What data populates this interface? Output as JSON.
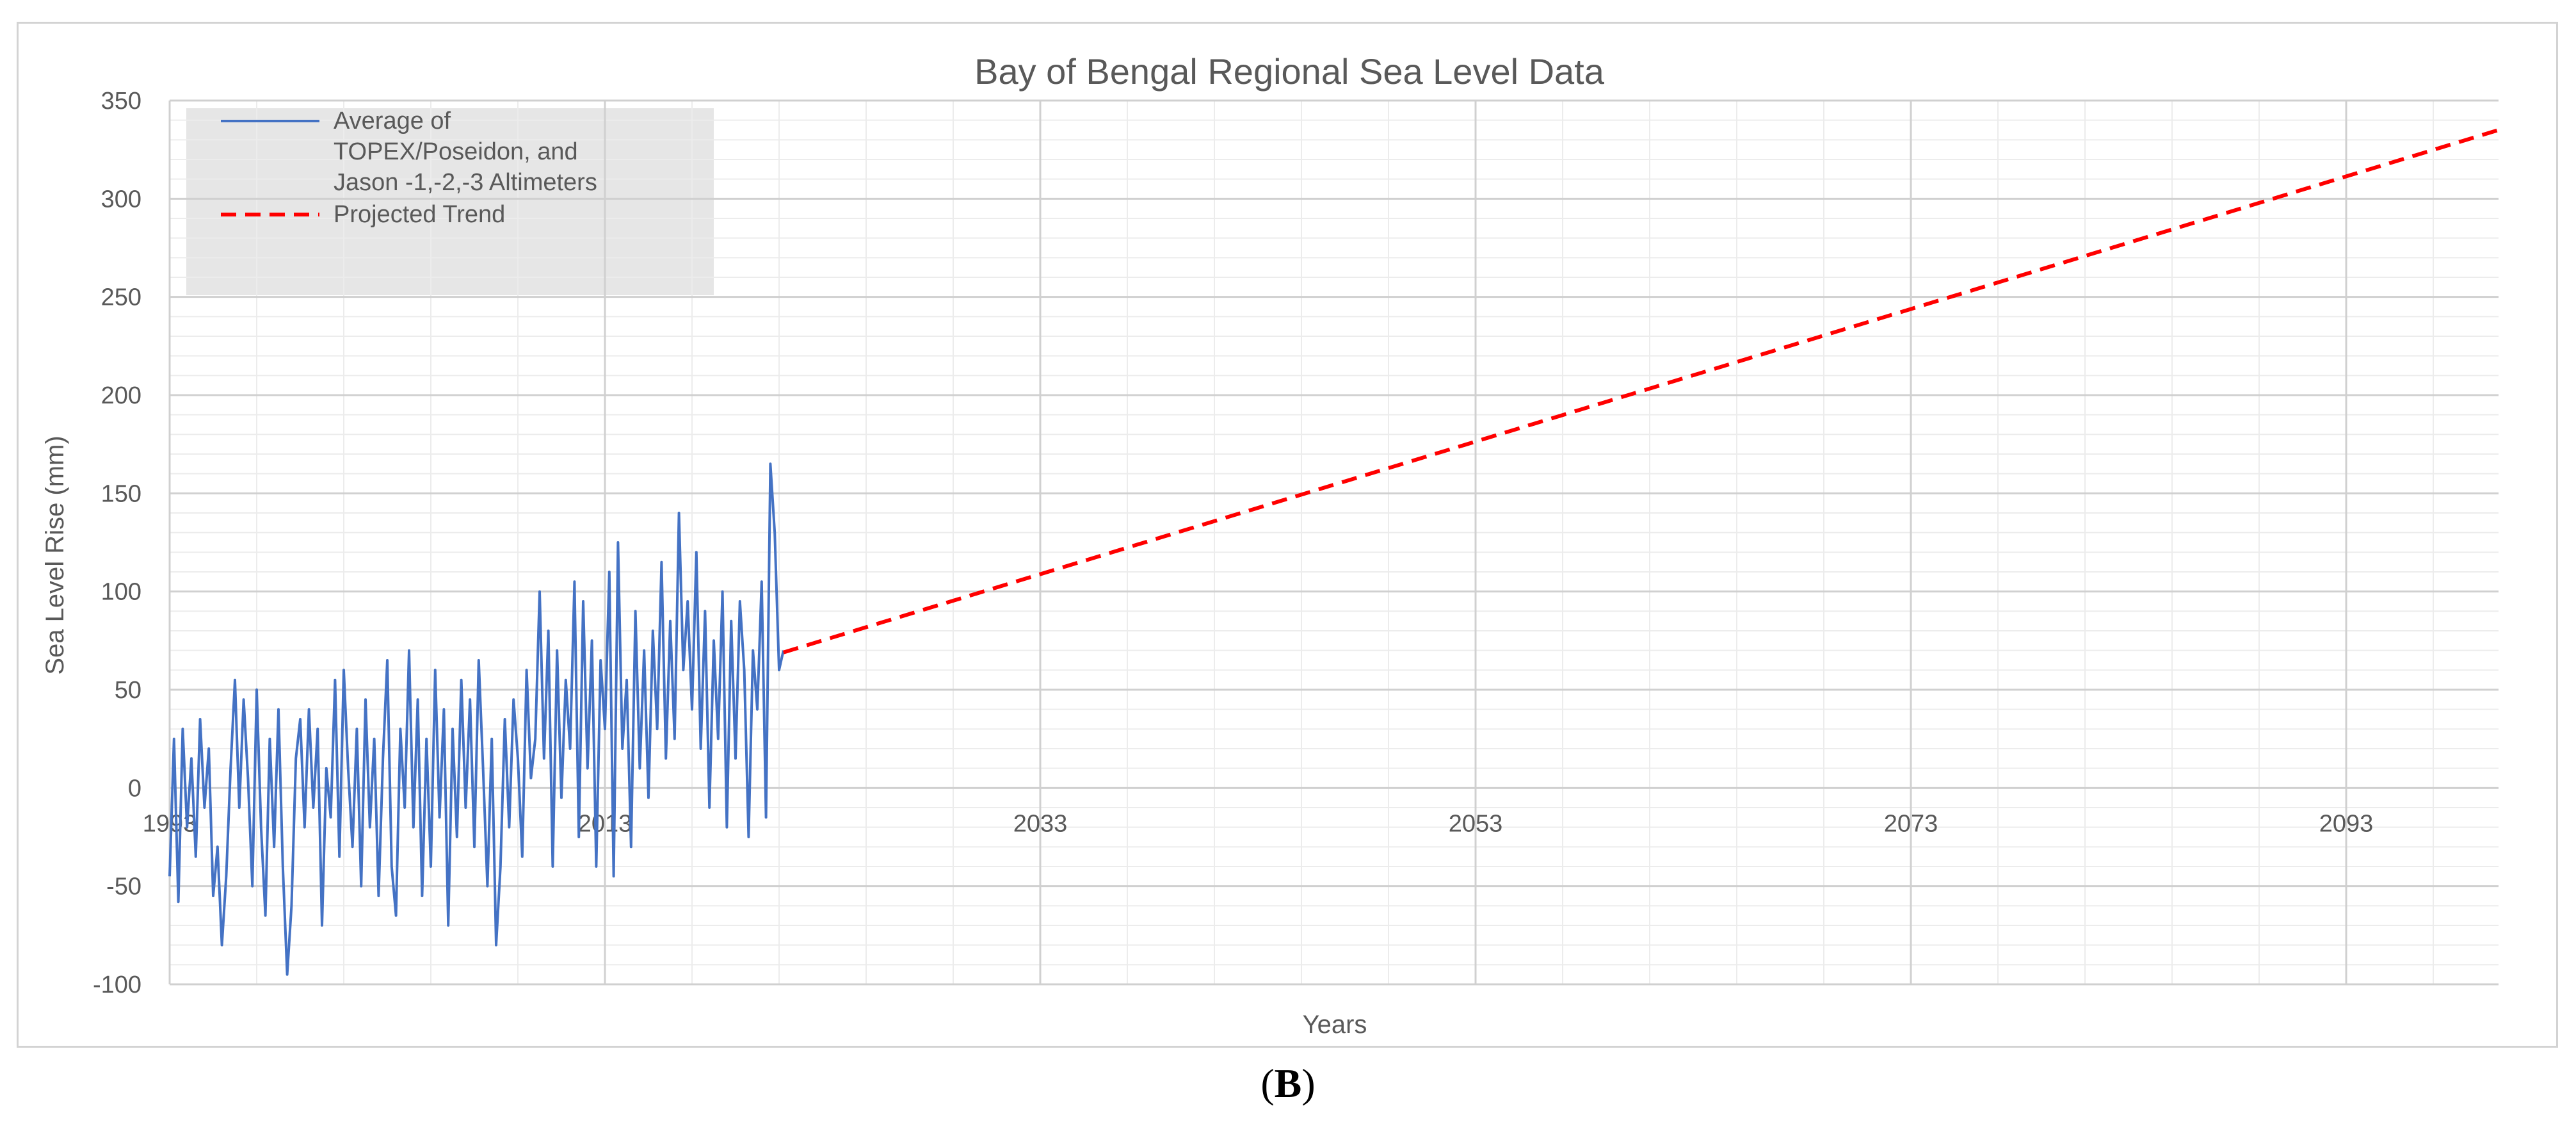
{
  "chart_data": {
    "type": "line",
    "title": "Bay of Bengal Regional Sea Level Data",
    "xlabel": "Years",
    "ylabel": "Sea Level Rise (mm)",
    "xlim": [
      1993,
      2100
    ],
    "ylim": [
      -100,
      350
    ],
    "x_ticks": [
      "1993",
      "2013",
      "2033",
      "2053",
      "2073",
      "2093"
    ],
    "y_ticks": [
      "-100",
      "-50",
      "0",
      "50",
      "100",
      "150",
      "200",
      "250",
      "300",
      "350"
    ],
    "grid": true,
    "legend_position": "top-left",
    "series": [
      {
        "name": "Average of TOPEX/Poseidon, and Jason -1,-2,-3 Altimeters",
        "style": "solid",
        "color": "#4472c4",
        "x": [
          1993.0,
          1993.2,
          1993.4,
          1993.6,
          1993.8,
          1994.0,
          1994.2,
          1994.4,
          1994.6,
          1994.8,
          1995.0,
          1995.2,
          1995.4,
          1995.6,
          1995.8,
          1996.0,
          1996.2,
          1996.4,
          1996.6,
          1996.8,
          1997.0,
          1997.2,
          1997.4,
          1997.6,
          1997.8,
          1998.0,
          1998.2,
          1998.4,
          1998.6,
          1998.8,
          1999.0,
          1999.2,
          1999.4,
          1999.6,
          1999.8,
          2000.0,
          2000.2,
          2000.4,
          2000.6,
          2000.8,
          2001.0,
          2001.2,
          2001.4,
          2001.6,
          2001.8,
          2002.0,
          2002.2,
          2002.4,
          2002.6,
          2002.8,
          2003.0,
          2003.2,
          2003.4,
          2003.6,
          2003.8,
          2004.0,
          2004.2,
          2004.4,
          2004.6,
          2004.8,
          2005.0,
          2005.2,
          2005.4,
          2005.6,
          2005.8,
          2006.0,
          2006.2,
          2006.4,
          2006.6,
          2006.8,
          2007.0,
          2007.2,
          2007.4,
          2007.6,
          2007.8,
          2008.0,
          2008.2,
          2008.4,
          2008.6,
          2008.8,
          2009.0,
          2009.2,
          2009.4,
          2009.6,
          2009.8,
          2010.0,
          2010.2,
          2010.4,
          2010.6,
          2010.8,
          2011.0,
          2011.2,
          2011.4,
          2011.6,
          2011.8,
          2012.0,
          2012.2,
          2012.4,
          2012.6,
          2012.8,
          2013.0,
          2013.2,
          2013.4,
          2013.6,
          2013.8,
          2014.0,
          2014.2,
          2014.4,
          2014.6,
          2014.8,
          2015.0,
          2015.2,
          2015.4,
          2015.6,
          2015.8,
          2016.0,
          2016.2,
          2016.4,
          2016.6,
          2016.8,
          2017.0,
          2017.2,
          2017.4,
          2017.6,
          2017.8,
          2018.0,
          2018.2,
          2018.4,
          2018.6,
          2018.8,
          2019.0,
          2019.2,
          2019.4,
          2019.6,
          2019.8,
          2020.0,
          2020.2,
          2020.4,
          2020.6,
          2020.8,
          2021.0,
          2021.2
        ],
        "y": [
          -45,
          25,
          -58,
          30,
          -20,
          15,
          -35,
          35,
          -10,
          20,
          -55,
          -30,
          -80,
          -45,
          10,
          55,
          -10,
          45,
          5,
          -50,
          50,
          -20,
          -65,
          25,
          -30,
          40,
          -40,
          -95,
          -60,
          15,
          35,
          -20,
          40,
          -10,
          30,
          -70,
          10,
          -15,
          55,
          -35,
          60,
          10,
          -30,
          30,
          -50,
          45,
          -20,
          25,
          -55,
          15,
          65,
          -40,
          -65,
          30,
          -10,
          70,
          -20,
          45,
          -55,
          25,
          -40,
          60,
          -15,
          40,
          -70,
          30,
          -25,
          55,
          -10,
          45,
          -30,
          65,
          10,
          -50,
          25,
          -80,
          -40,
          35,
          -20,
          45,
          15,
          -35,
          60,
          5,
          25,
          100,
          15,
          80,
          -40,
          70,
          -5,
          55,
          20,
          105,
          -25,
          95,
          10,
          75,
          -40,
          65,
          30,
          110,
          -45,
          125,
          20,
          55,
          -30,
          90,
          10,
          70,
          -5,
          80,
          30,
          115,
          15,
          85,
          25,
          140,
          60,
          95,
          40,
          120,
          20,
          90,
          -10,
          75,
          25,
          100,
          -20,
          85,
          15,
          95,
          60,
          -25,
          70,
          40,
          105,
          -15,
          165,
          130,
          60,
          70
        ]
      },
      {
        "name": "Projected Trend",
        "style": "dashed",
        "color": "#ff0000",
        "x": [
          2021.2,
          2100
        ],
        "y": [
          69,
          335
        ]
      }
    ],
    "annotations": [
      {
        "text": "(B)",
        "position": "below-center"
      }
    ]
  },
  "panel_label": {
    "open": "(",
    "letter": "B",
    "close": ")"
  }
}
